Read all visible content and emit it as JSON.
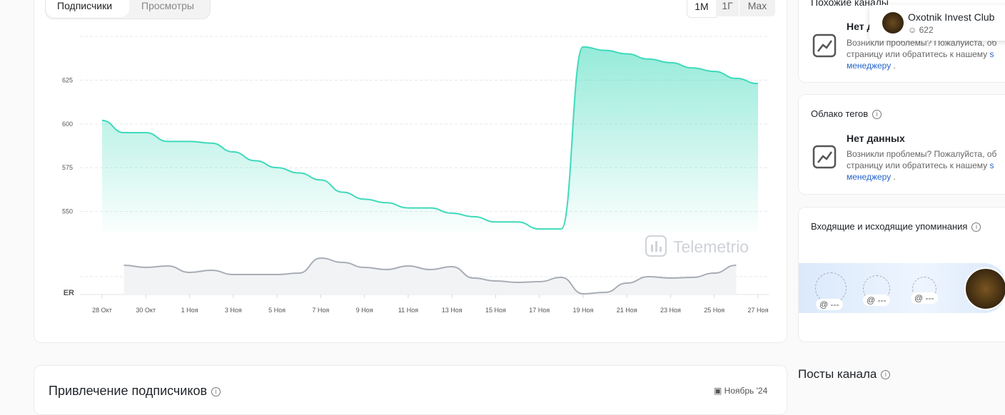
{
  "tabs": [
    "Подписчики",
    "Просмотры"
  ],
  "periods": [
    "1M",
    "1Г",
    "Max"
  ],
  "chart_data": {
    "type": "area",
    "x": [
      "28 Окт",
      null,
      "30 Окт",
      null,
      "1 Ноя",
      null,
      "3 Ноя",
      null,
      "5 Ноя",
      null,
      "7 Ноя",
      null,
      "9 Ноя",
      null,
      "11 Ноя",
      null,
      "13 Ноя",
      null,
      "15 Ноя",
      null,
      "17 Ноя",
      null,
      "19 Ноя",
      null,
      "21 Ноя",
      null,
      "23 Ноя",
      null,
      "25 Ноя",
      null,
      "27 Ноя"
    ],
    "values": [
      602,
      595,
      595,
      590,
      590,
      589,
      584,
      579,
      575,
      572,
      568,
      561,
      557,
      555,
      552,
      552,
      549,
      547,
      544,
      544,
      540,
      540,
      644,
      642,
      640,
      637,
      635,
      632,
      630,
      626,
      623
    ],
    "color": "#3fdabb",
    "ylim": [
      538,
      650
    ],
    "yticks": [
      550,
      575,
      600,
      625
    ],
    "grid": true,
    "watermark": "Telemetrio",
    "er": {
      "label": "ER",
      "color": "#a8adb6",
      "ylim": [
        0,
        60
      ],
      "values": [
        null,
        41,
        38,
        40,
        31,
        34,
        28,
        28,
        28,
        30,
        51,
        45,
        38,
        35,
        40,
        35,
        39,
        23,
        19,
        17,
        18,
        24,
        1,
        3,
        16,
        25,
        23,
        24,
        30,
        41,
        null
      ]
    }
  },
  "similar": {
    "title": "Похожие каналы",
    "empty_title": "Нет данных",
    "line1": "Возникли проблемы? Пожалуйста, об",
    "line2": "страницу или обратитесь к нашему",
    "link1": "s",
    "link2": "менеджеру",
    "tail": "."
  },
  "popup": {
    "name": "Oxotnik Invest Club",
    "subscribers": 622
  },
  "tags": {
    "title": "Облако тегов",
    "empty_title": "Нет данных",
    "line1": "Возникли проблемы? Пожалуйста, об",
    "line2": "страницу или обратитесь к нашему",
    "link1": "s",
    "link2": "менеджеру",
    "tail": "."
  },
  "mentions": {
    "title": "Входящие и исходящие упоминания",
    "placeholders": [
      "@ ---",
      "@ ---",
      "@ ---"
    ]
  },
  "recruitment": {
    "title": "Привлечение подписчиков",
    "period": "Ноябрь '24"
  },
  "posts": {
    "title": "Посты канала"
  }
}
